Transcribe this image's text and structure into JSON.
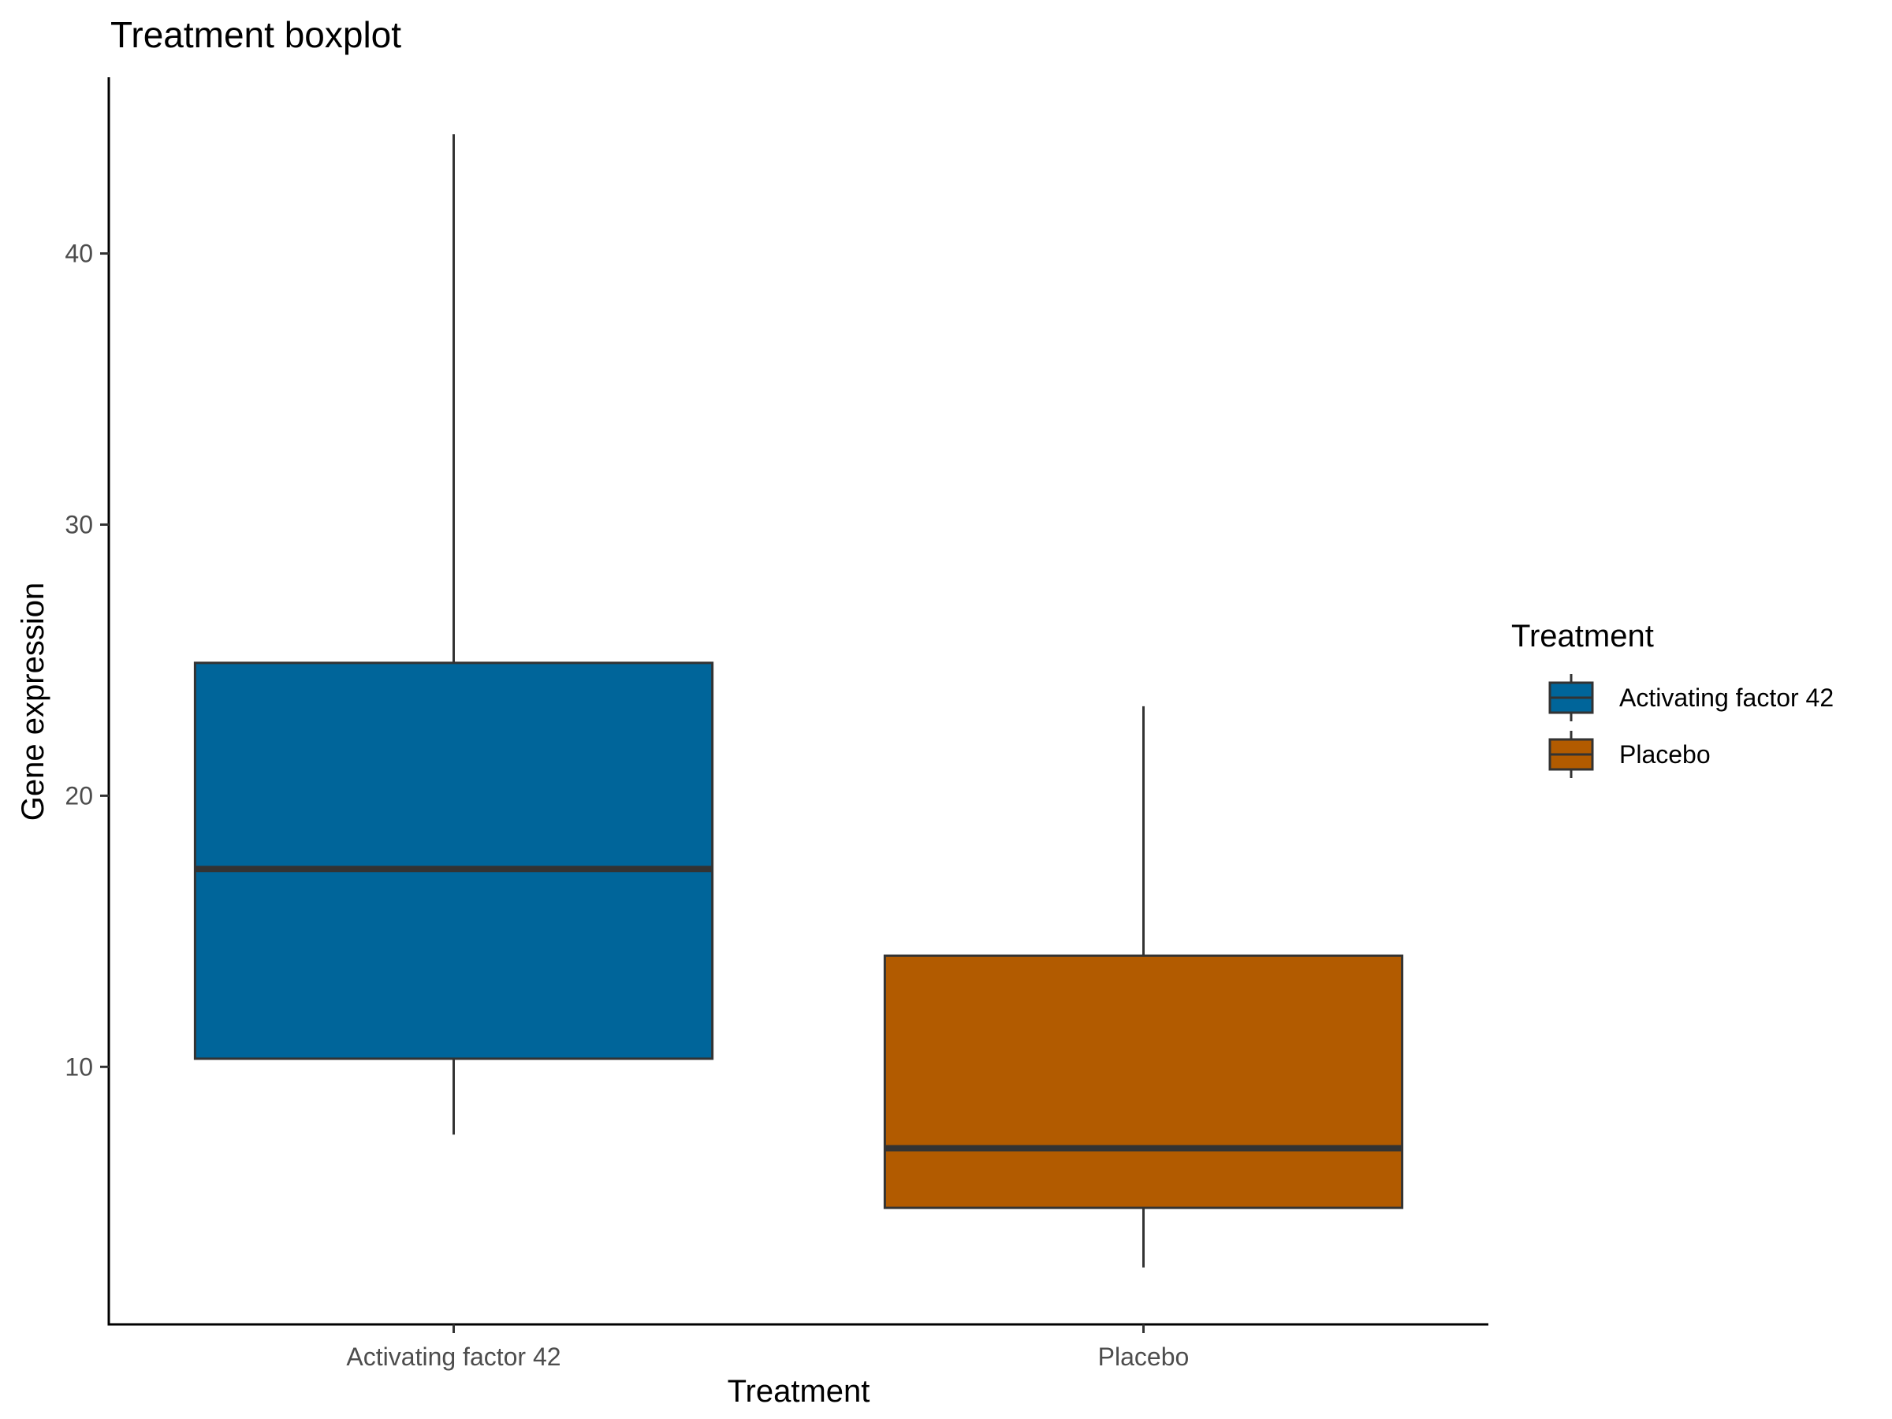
{
  "chart_data": {
    "type": "boxplot",
    "title": "Treatment boxplot",
    "xlabel": "Treatment",
    "ylabel": "Gene expression",
    "ylim": [
      0.5,
      46.5
    ],
    "yticks": [
      10,
      20,
      30,
      40
    ],
    "grid": false,
    "legend": {
      "title": "Treatment",
      "position": "right"
    },
    "categories": [
      "Activating factor 42",
      "Placebo"
    ],
    "series": [
      {
        "name": "Activating factor 42",
        "color": "#00659A",
        "whisker_low": 7.5,
        "q1": 10.3,
        "median": 17.3,
        "q3": 24.9,
        "whisker_high": 44.4
      },
      {
        "name": "Placebo",
        "color": "#B25B00",
        "whisker_low": 2.6,
        "q1": 4.8,
        "median": 7.0,
        "q3": 14.1,
        "whisker_high": 23.3
      }
    ]
  }
}
